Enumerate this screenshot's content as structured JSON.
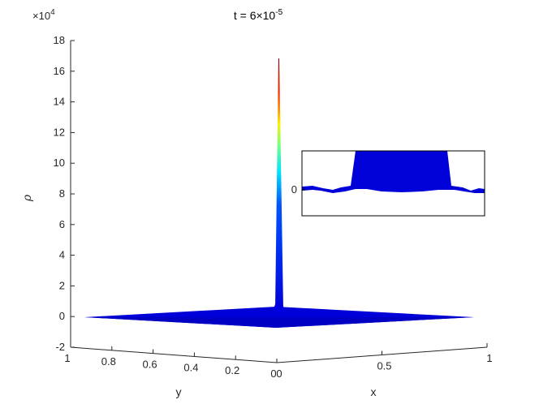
{
  "chart_data": {
    "type": "surface",
    "title": "t = 6×10",
    "title_exponent": "-5",
    "zlabel": "ρ",
    "xlabel": "x",
    "ylabel": "y",
    "z_multiplier_base": "×10",
    "z_multiplier_exp": "4",
    "zlim": [
      -2,
      18
    ],
    "z_ticks": [
      "-2",
      "0",
      "2",
      "4",
      "6",
      "8",
      "10",
      "12",
      "14",
      "16",
      "18"
    ],
    "x_ticks": [
      "0",
      "0.5",
      "1"
    ],
    "y_ticks": [
      "1",
      "0.8",
      "0.6",
      "0.4",
      "0.2",
      "0"
    ],
    "xlim": [
      0,
      1
    ],
    "ylim": [
      0,
      1
    ],
    "peak": {
      "x": 0,
      "y": 0,
      "rho": 16.8
    },
    "colormap": [
      "#00008f",
      "#0000ff",
      "#00ffff",
      "#ffff00",
      "#ff0000",
      "#800000"
    ],
    "inset": {
      "tick_label": "0"
    }
  }
}
